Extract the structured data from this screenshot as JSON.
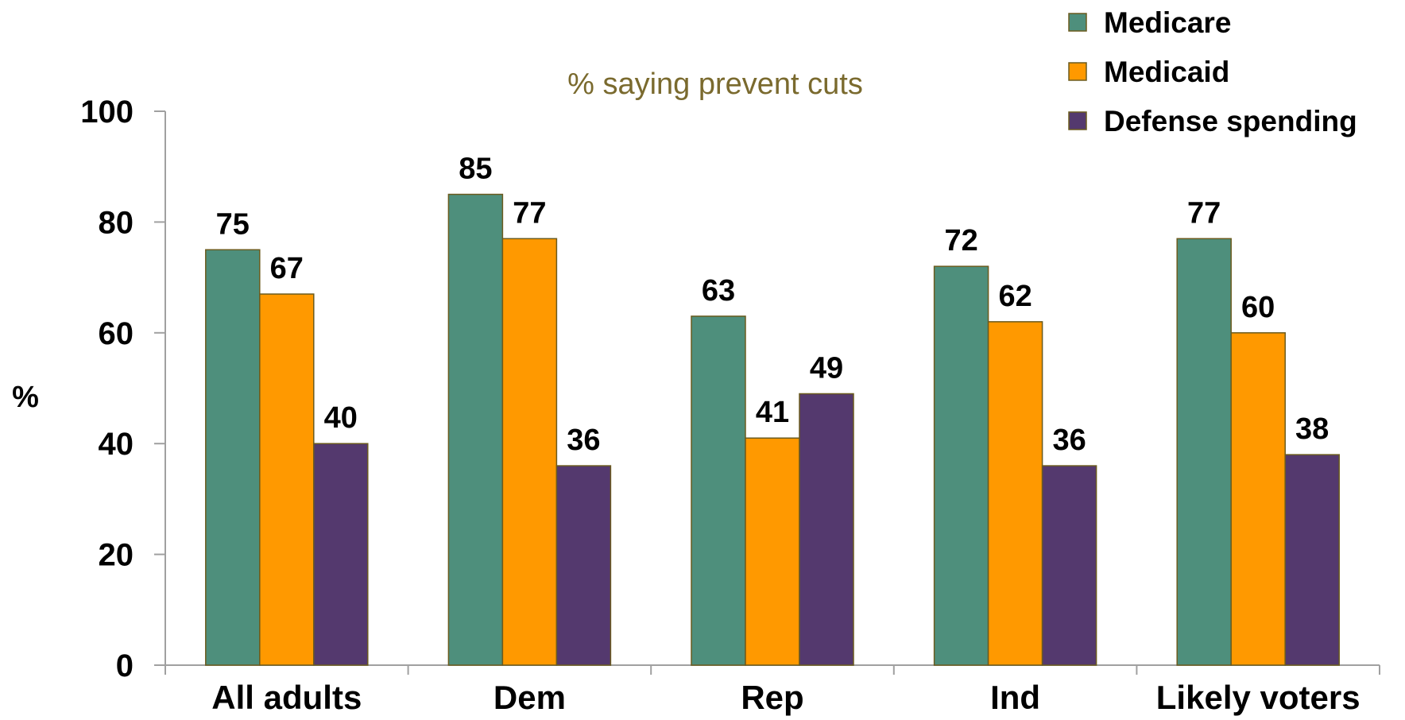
{
  "chart_data": {
    "type": "bar",
    "title": "% saying prevent cuts",
    "xlabel": "",
    "ylabel": "%",
    "ylim": [
      0,
      100
    ],
    "yticks": [
      0,
      20,
      40,
      60,
      80,
      100
    ],
    "grid": false,
    "legend_position": "top-right",
    "categories": [
      "All adults",
      "Dem",
      "Rep",
      "Ind",
      "Likely voters"
    ],
    "series": [
      {
        "name": "Medicare",
        "color": "#4E8F7C",
        "values": [
          75,
          85,
          63,
          72,
          77
        ]
      },
      {
        "name": "Medicaid",
        "color": "#FF9900",
        "values": [
          67,
          77,
          41,
          62,
          60
        ]
      },
      {
        "name": "Defense spending",
        "color": "#54396E",
        "values": [
          40,
          36,
          49,
          36,
          38
        ]
      }
    ],
    "colors": {
      "title": "#7A6A2E",
      "bar_border": "#6B5B1E",
      "axis": "#A0A0A0",
      "text": "#000000"
    }
  }
}
